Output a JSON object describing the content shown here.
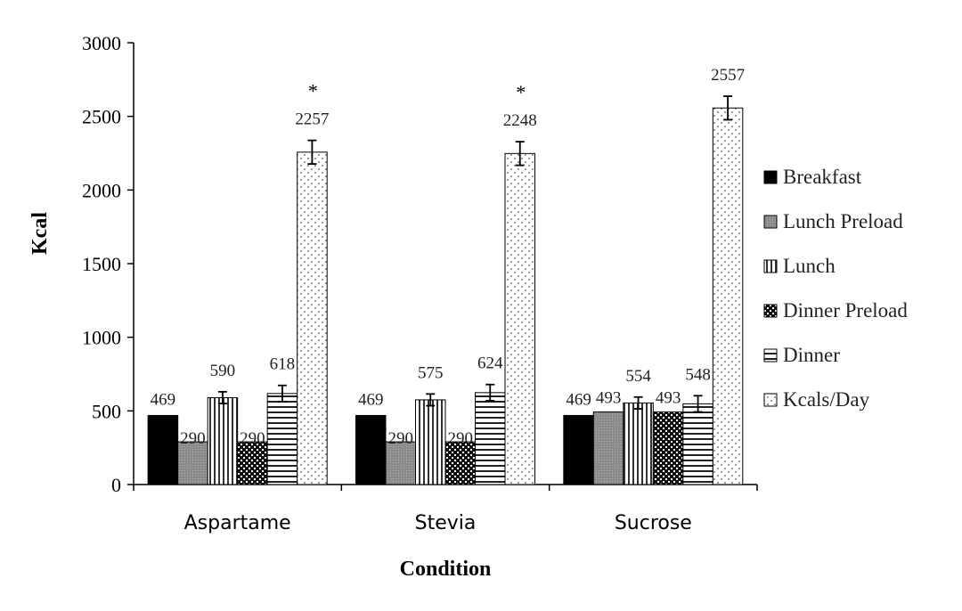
{
  "chart_data": {
    "type": "bar",
    "title": "",
    "xlabel": "Condition",
    "ylabel": "Kcal",
    "ylim": [
      0,
      3000
    ],
    "yticks": [
      "0",
      "500",
      "1000",
      "1500",
      "2000",
      "2500",
      "3000"
    ],
    "categories": [
      "Aspartame",
      "Stevia",
      "Sucrose"
    ],
    "series": [
      {
        "name": "Breakfast",
        "pattern": "solid",
        "values": [
          469,
          469,
          469
        ],
        "labels": [
          "469",
          "469",
          "469"
        ],
        "errors": [
          0,
          0,
          0
        ]
      },
      {
        "name": "Lunch Preload",
        "pattern": "gray",
        "values": [
          290,
          290,
          493
        ],
        "labels": [
          "290",
          "290",
          "493"
        ],
        "errors": [
          0,
          0,
          0
        ]
      },
      {
        "name": "Lunch",
        "pattern": "vertical",
        "values": [
          590,
          575,
          554
        ],
        "labels": [
          "590",
          "575",
          "554"
        ],
        "errors": [
          40,
          40,
          40
        ]
      },
      {
        "name": "Dinner Preload",
        "pattern": "check",
        "values": [
          290,
          290,
          493
        ],
        "labels": [
          "290",
          "290",
          "493"
        ],
        "errors": [
          0,
          0,
          0
        ]
      },
      {
        "name": "Dinner",
        "pattern": "horizontal",
        "values": [
          618,
          624,
          548
        ],
        "labels": [
          "618",
          "624",
          "548"
        ],
        "errors": [
          55,
          55,
          55
        ]
      },
      {
        "name": "Kcals/Day",
        "pattern": "dots",
        "values": [
          2257,
          2248,
          2557
        ],
        "labels": [
          "2257",
          "2248",
          "2557"
        ],
        "errors": [
          80,
          80,
          80
        ]
      }
    ],
    "annotations": [
      "*",
      "*",
      ""
    ],
    "legend_position": "right",
    "grid": false
  }
}
